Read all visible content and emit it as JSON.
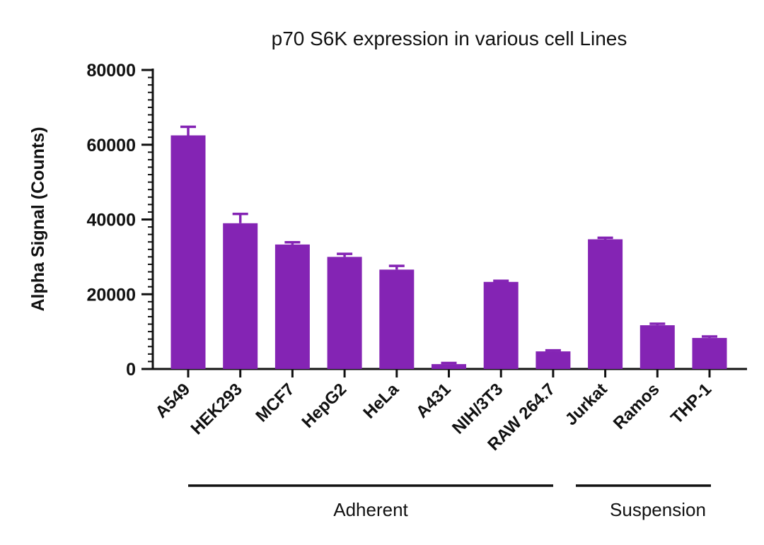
{
  "chart_data": {
    "type": "bar",
    "title": "p70 S6K expression in various cell Lines",
    "xlabel": "",
    "ylabel": "Alpha Signal (Counts)",
    "ylim": [
      0,
      80000
    ],
    "yticks": [
      "0",
      "20000",
      "40000",
      "60000",
      "80000"
    ],
    "ytick_values": [
      0,
      20000,
      40000,
      60000,
      80000
    ],
    "grid": false,
    "bar_color": "#8424b4",
    "categories": [
      "A549",
      "HEK293",
      "MCF7",
      "HepG2",
      "HeLa",
      "A431",
      "NIH/3T3",
      "RAW 264.7",
      "Jurkat",
      "Ramos",
      "THP-1"
    ],
    "values": [
      62500,
      39000,
      33300,
      30000,
      26600,
      1300,
      23300,
      4700,
      34700,
      11700,
      8300
    ],
    "errors": [
      2300,
      2500,
      600,
      800,
      1000,
      300,
      300,
      300,
      400,
      400,
      400
    ],
    "groups": [
      {
        "label": "Adherent",
        "categories": [
          "A549",
          "HEK293",
          "MCF7",
          "HepG2",
          "HeLa",
          "A431",
          "NIH/3T3",
          "RAW 264.7"
        ]
      },
      {
        "label": "Suspension",
        "categories": [
          "Jurkat",
          "Ramos",
          "THP-1"
        ]
      }
    ]
  }
}
